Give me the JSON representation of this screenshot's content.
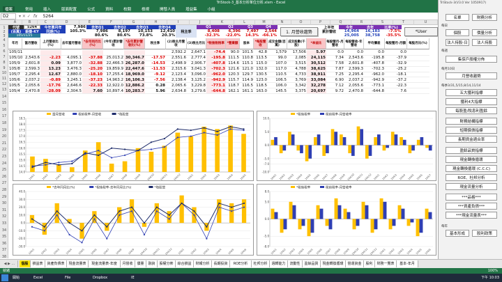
{
  "window": {
    "title": "TriStock-3_基本分析單位分析.xlsm - Excel",
    "controls": "—  ❐  ✕"
  },
  "ribbon": {
    "tabs": [
      "檔案",
      "常用",
      "插入",
      "版面配置",
      "公式",
      "資料",
      "校閱",
      "檢視",
      "開發人員",
      "增益集",
      "小組"
    ]
  },
  "formula": {
    "name_box": "D2",
    "fx": "fx",
    "value": "5264"
  },
  "columns": [
    "A",
    "B",
    "C",
    "D",
    "E",
    "F",
    "G",
    "H",
    "I",
    "J",
    "K",
    "L",
    "M",
    "N",
    "O",
    "P",
    "Q",
    "R",
    "S",
    "T",
    "U",
    "V"
  ],
  "rows": [
    "1",
    "2",
    "3",
    "4",
    "5",
    "6",
    "7",
    "8",
    "9",
    "10",
    "11",
    "12",
    "13",
    "14",
    "15",
    "16",
    "17",
    "18",
    "19",
    "20",
    "21",
    "22",
    "23",
    "24",
    "25",
    "26",
    "27",
    "28",
    "29",
    "30",
    "31",
    "32",
    "33",
    "34",
    "35",
    "36",
    "37",
    "38",
    "39",
    "40"
  ],
  "header_block": {
    "code_label": "代號",
    "code_value": "5264",
    "unit_label": "(百萬)",
    "unit_value": "鉅橡-KY",
    "yoy_label1": "今年單月年",
    "yoy_label2": "同期(%)",
    "yoy_v1": "7,986",
    "yoy_v2": "105.3%",
    "q1_label": "去年Q1",
    "q2_label": "去年Q2",
    "q3_label": "去年Q3",
    "q4_label": "去年Q4",
    "q1_v1": "7,986",
    "q1_v2": "80.6%",
    "q2_v1": "8,197",
    "q2_v2": "80.6%",
    "q3_v1": "10,153",
    "q3_v2": "73.8%",
    "q4_v1": "12,410",
    "q4_v2": "20.3%",
    "last_year_label": "稅主季",
    "last_year_v1": "8,408",
    "last_year_v2": "-23.5%",
    "cq1_label": "Q1",
    "cq2_label": "Q2",
    "cq3_label": "Q3",
    "cq4_label": "Q4",
    "cq1_v1": "8,408",
    "cq1_v2": "-32.3%",
    "cq2_v1": "6,396",
    "cq2_v2": "-22.0%",
    "cq3_v1": "7,497",
    "cq3_v2": "14.3%",
    "cq4_v1": "2,544",
    "cq4_v2": "-66.1%",
    "half_label1": "上半年",
    "half_label2": "累計營收",
    "half_v1": "14,964",
    "half_v2": "25,005",
    "thisyear_label": "今年",
    "thisyear_v1": "16,183",
    "thisyear_v2": "38,758",
    "lastyear_label": "去年",
    "lastyear_v1": "",
    "ratio_label": "比率(%)",
    "ratio_v1": "-7.5%",
    "ratio_v2": "-35.5%",
    "button_monthly": "1. 月營收趨勢",
    "button_user": "*User"
  },
  "table_headers": [
    "年月",
    "當月營收",
    "上月營收比(%)",
    "去年當月營收",
    "*去年同月比(%)",
    "(今年)累計營收",
    "*去年累計營收比(%)",
    "稅主季",
    "(2)稅主月營收",
    "(3)稅主月比",
    "*稅後稅稅率",
    "*營業額",
    "股本",
    "*每股營收",
    "成交金額(百萬)",
    "成交股數(千股)",
    "*本益比",
    "每股營月-月營收",
    "每股營收-年營收",
    "平均價差",
    "每股營月-月額",
    "每股月比(%)"
  ],
  "table_rows": [
    [
      "105/11",
      "",
      "",
      "",
      "",
      "",
      "",
      "",
      "2,592.2",
      "2,647.1",
      "-74.4",
      "90.0",
      "101.5",
      "42.8",
      "1,579",
      "17,506",
      "5.97",
      "0.0",
      "0.0",
      "0.0",
      "0.0",
      ""
    ],
    [
      "105/10",
      "2,543.6",
      "-2.23",
      "4,095.1",
      "-37.88",
      "25,013.2",
      "30,346.7",
      "-17.57",
      "2,551.6",
      "2,777.4",
      "-195.8",
      "111.5",
      "110.8",
      "113.5",
      "99.0",
      "2,085",
      "24,115",
      "7.34",
      "2,543.6",
      "-195.8",
      "-37.9",
      ""
    ],
    [
      "105/9",
      "2,601.8",
      "0.09",
      "3,877.0",
      "-32.88",
      "22,466.3",
      "26,287.0",
      "-14.53",
      "2,498.9",
      "2,906.7",
      "-407.8",
      "114.6",
      "115.1",
      "115.0",
      "107.0",
      "3,515",
      "30,512",
      "7.58",
      "2,601.8",
      "-407.8",
      "-32.9",
      ""
    ],
    [
      "105/8",
      "2,599.3",
      "13.23",
      "3,476.3",
      "-25.20",
      "19,859.9",
      "22,447.6",
      "-11.53",
      "2,315.6",
      "3,041.3",
      "-702.3",
      "121.6",
      "121.0",
      "132.0",
      "117.0",
      "4,788",
      "38,625",
      "7.87",
      "2,599.3",
      "-702.3",
      "-25.2",
      ""
    ],
    [
      "105/7",
      "2,295.4",
      "12.67",
      "2,880.0",
      "-18.10",
      "17,255.4",
      "18,969.0",
      "-9.12",
      "2,123.4",
      "3,096.0",
      "-962.0",
      "120.3",
      "129.7",
      "130.5",
      "110.5",
      "4,733",
      "38,911",
      "7.25",
      "2,295.4",
      "-962.0",
      "-18.1",
      ""
    ],
    [
      "105/6",
      "2,037.2",
      "-0.89",
      "3,245.1",
      "-37.23",
      "14,963.2",
      "16,106.3",
      "-7.56",
      "2,138.4",
      "3,125.2",
      "-942.9",
      "115.7",
      "114.9",
      "123.0",
      "106.5",
      "3,769",
      "33,084",
      "6.90",
      "2,037.2",
      "-942.9",
      "-37.2",
      ""
    ],
    [
      "105/5",
      "2,055.6",
      "-17.76",
      "2,646.6",
      "-22.33",
      "12,922.0",
      "12,886.2",
      "0.28",
      "2,065.6",
      "3,229.8",
      "-773.1",
      "118.7",
      "116.5",
      "118.5",
      "106.0",
      "3,342",
      "32,278",
      "7.12",
      "2,055.6",
      "-773.1",
      "-22.3",
      ""
    ],
    [
      "105/4",
      "2,470.8",
      "-28.09",
      "2,304.5",
      "7.60",
      "10,897.4",
      "10,283.7",
      "5.96",
      "2,634.8",
      "3,279.6",
      "-644.8",
      "162.1",
      "161.1",
      "163.0",
      "145.5",
      "3,375",
      "20,697",
      "9.72",
      "2,470.8",
      "-644.8",
      "7.6",
      ""
    ]
  ],
  "sidebar": {
    "title": "TriStock-3(V3.0 Ver 1050917)",
    "btn_name": "名單",
    "btn_fin": "財務分析",
    "sec1_label": "每日",
    "btn_stock": "個股",
    "btn_price": "價量分析",
    "btn_inst": "法人持股-日",
    "btn_inst2": "法人持股",
    "sec2_label": "每週",
    "btn_share": "集保戶股權分佈",
    "sec3_label": "每月10日",
    "btn_month": "月營收趨勢",
    "sec4_label": "每季3/31,5/15,8/14,11/14",
    "btn_five": "五大獲利指標",
    "btn_fourmargin": "獲利4大指標",
    "btn_roe": "每股盈/稅息利盈餘",
    "btn_fin2": "財務結構指標",
    "btn_debt": "短期償債指標",
    "btn_long": "長期資金適合率",
    "btn_turn": "盈餘品質指標",
    "btn_cash": "現金轉換循環",
    "btn_ccc": "現金轉換循環 (C.C.C)",
    "btn_roe2": "ROE、杜邦分析",
    "btn_cashflow": "現金流量分析",
    "btn_special": "***品格***",
    "btn_invest": "***資產負債***",
    "btn_cfsheet": "***現金流量表***",
    "sec5_label": "每年",
    "btn_basic": "基本形成",
    "btn_dividend": "股利政策"
  },
  "chart_data": [
    {
      "type": "bar",
      "title": "",
      "series": [
        {
          "name": "當月營收",
          "values": [
            15.3,
            15.1,
            14.6,
            14.4,
            15.8,
            16.5,
            14.7,
            14.9,
            16.0,
            15.7,
            16.2,
            17.3,
            17.0,
            17.8,
            17.6,
            17.9,
            17.2
          ]
        },
        {
          "name": "稅前稅率-月營收",
          "values": [
            14.5,
            14.6,
            14.8,
            14.9,
            15.5,
            15.8,
            15.2,
            15.4,
            15.8,
            15.9,
            16.1,
            16.9,
            17.0,
            17.3,
            17.1,
            17.6,
            17.5
          ]
        },
        {
          "name": "*每股營",
          "values": [
            14.4,
            14.8,
            14.6,
            14.7,
            15.6,
            15.4,
            16.0,
            15.9,
            15.8,
            16.5,
            16.8,
            17.6,
            17.5,
            17.7,
            17.4,
            17.8,
            17.6
          ]
        }
      ],
      "ylim": [
        14,
        18.5
      ],
      "yticks": [
        "14.0",
        "14.5",
        "15.0",
        "15.5",
        "16.0",
        "16.5",
        "17.0",
        "17.5",
        "18.0",
        "18.5"
      ]
    },
    {
      "type": "bar",
      "title": "",
      "series": [
        {
          "name": "*稅後稅率",
          "values": [
            2,
            -3,
            5,
            -2,
            -6,
            3,
            -4,
            6,
            4,
            -3,
            7,
            -5,
            3,
            -2,
            5,
            3,
            -3,
            2,
            -1
          ]
        },
        {
          "name": "稅前稅率-月營收率",
          "values": [
            3,
            -2,
            4,
            -3,
            -5,
            4,
            -3,
            5,
            3,
            -4,
            6,
            -4,
            4,
            -1,
            4,
            2,
            -2,
            3,
            -2
          ]
        }
      ],
      "ylim": [
        -10,
        10
      ],
      "yticks": [
        "-10.0",
        "-7.0",
        "-5.0",
        "0.0",
        "5.0",
        "10.0"
      ]
    },
    {
      "type": "bar",
      "title": "",
      "series": [
        {
          "name": "*去年同月比(%)",
          "values": [
            10,
            -15,
            25,
            5,
            -20,
            15,
            -10,
            20,
            30,
            -5,
            25,
            15,
            35,
            20,
            -10,
            30,
            25,
            30
          ]
        },
        {
          "name": "*稅後稅率-去年同月比(%)",
          "values": [
            -5,
            -10,
            10,
            -15,
            -25,
            5,
            -20,
            10,
            15,
            -15,
            15,
            5,
            25,
            10,
            -20,
            20,
            15,
            20
          ]
        },
        {
          "name": "*每股營",
          "values": [
            5,
            -5,
            15,
            0,
            -10,
            10,
            -5,
            15,
            20,
            0,
            20,
            10,
            25,
            15,
            -5,
            25,
            20,
            25
          ]
        }
      ],
      "ylim": [
        -30,
        40
      ],
      "yticks": [
        "-30.0",
        "-20.0",
        "-10.0",
        "0.0",
        "10.0",
        "20.0",
        "30.0",
        "40.0"
      ]
    },
    {
      "type": "bar",
      "title": "",
      "series": [
        {
          "name": "*稅後稅率",
          "values": [
            3,
            -4,
            5,
            -3,
            -5,
            4,
            -2,
            6,
            3,
            -3,
            5,
            -4,
            6,
            -3,
            4,
            -2,
            -5,
            3
          ]
        },
        {
          "name": "稅前稅率-月營收率",
          "values": [
            2,
            -3,
            4,
            -2,
            -4,
            3,
            -3,
            4,
            2,
            -2,
            4,
            -3,
            5,
            -2,
            3,
            -1,
            -4,
            2
          ]
        }
      ],
      "ylim": [
        -8,
        8
      ],
      "yticks": [
        "-8.0",
        "-5.0",
        "0.0",
        "5.0",
        "8.0"
      ]
    }
  ],
  "sheet_tabs": [
    "個股",
    "損益表",
    "資產負債表",
    "現金流量表",
    "現金流量表-年度",
    "月營收",
    "價量",
    "融資",
    "股權分佈",
    "綜合損益",
    "財報分析",
    "長期投資",
    "ROE分析",
    "杜邦分析",
    "週轉能力",
    "流動性",
    "盈餘品質",
    "現金轉換循環",
    "營運資金",
    "股利",
    "財務一覽表",
    "基本-年月"
  ],
  "status": {
    "text": "就緒",
    "zoom": "100%"
  },
  "taskbar": {
    "items": [
      "開始",
      "Excel",
      "File",
      "Dropbox",
      "IE"
    ],
    "clock": "下午 10:03"
  }
}
